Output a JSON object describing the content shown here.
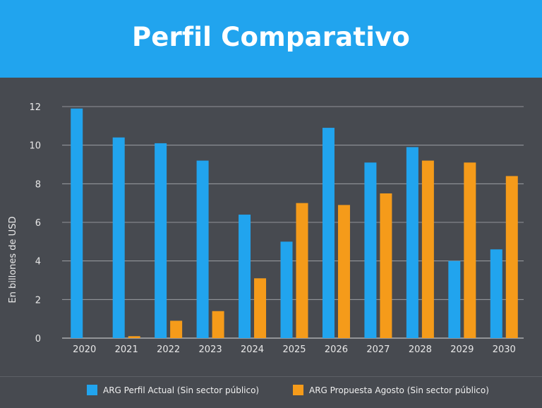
{
  "title": "Perfil Comparativo",
  "chart_data": {
    "type": "bar",
    "ylabel": "En billones de USD",
    "ylim": [
      0,
      12
    ],
    "yticks": [
      0,
      2,
      4,
      6,
      8,
      10,
      12
    ],
    "grid": true,
    "legend_position": "bottom",
    "categories": [
      "2020",
      "2021",
      "2022",
      "2023",
      "2024",
      "2025",
      "2026",
      "2027",
      "2028",
      "2029",
      "2030"
    ],
    "series": [
      {
        "name": "ARG Perfil Actual (Sin sector público)",
        "color": "#21a4ee",
        "values": [
          11.9,
          10.4,
          10.1,
          9.2,
          6.4,
          5.0,
          10.9,
          9.1,
          9.9,
          4.0,
          4.6
        ]
      },
      {
        "name": "ARG Propuesta Agosto (Sin sector público)",
        "color": "#f59b1a",
        "values": [
          0,
          0.1,
          0.9,
          1.4,
          3.1,
          7.0,
          6.9,
          7.5,
          9.2,
          9.1,
          8.4
        ]
      }
    ]
  }
}
